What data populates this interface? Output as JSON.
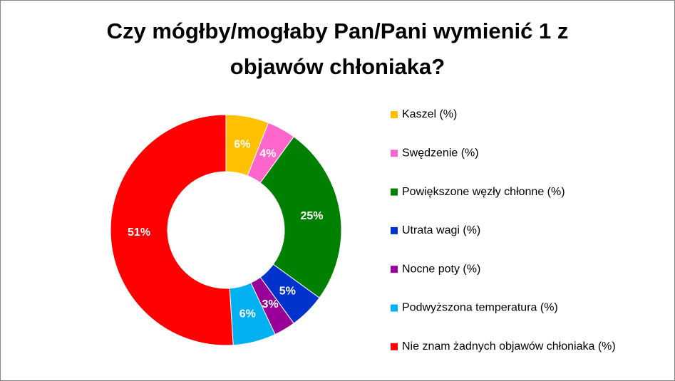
{
  "chart_data": {
    "type": "donut",
    "title": "Czy mógłby/mogłaby Pan/Pani wymienić 1 z objawów chłoniaka?",
    "categories": [
      "Kaszel (%)",
      "Swędzenie (%)",
      "Powiększone węzły chłonne (%)",
      "Utrata wagi (%)",
      "Nocne poty (%)",
      "Podwyższona temperatura (%)",
      "Nie znam żadnych objawów chłoniaka (%)"
    ],
    "values": [
      6,
      4,
      25,
      5,
      3,
      6,
      51
    ],
    "value_labels": [
      "6%",
      "4%",
      "25%",
      "5%",
      "3%",
      "6%",
      "51%"
    ],
    "colors": [
      "#FFC000",
      "#FF66CC",
      "#008000",
      "#0033CC",
      "#990099",
      "#00B0F0",
      "#FF0000"
    ],
    "legend": "right"
  }
}
